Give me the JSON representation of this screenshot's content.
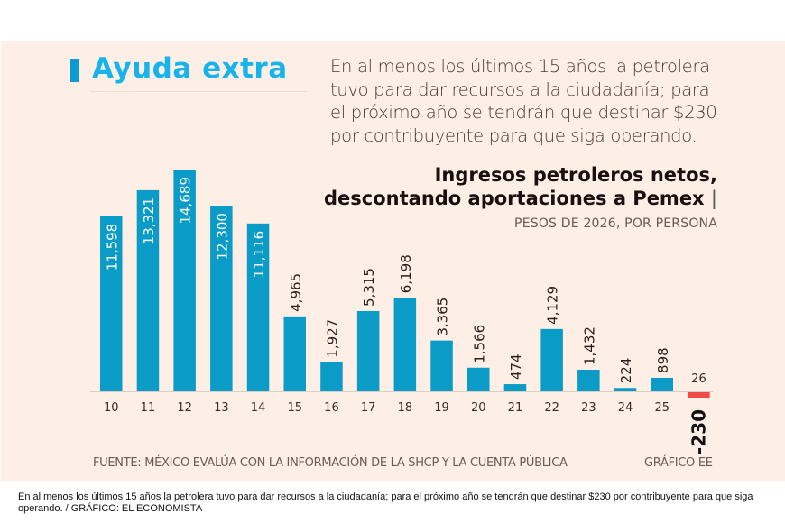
{
  "header": {
    "title": "Ayuda extra",
    "intro": "En al menos los últimos 15 años la petrolera tuvo para dar recursos a la ciudadanía; para el próximo año se tendrán que destinar $230 por contribuyente para que siga operando."
  },
  "chart_data": {
    "type": "bar",
    "title_line1": "Ingresos petroleros netos,",
    "title_line2": "descontando aportaciones a Pemex",
    "title_separator": "|",
    "subtitle": "PESOS DE 2026, POR PERSONA",
    "xlabel": "",
    "ylabel": "",
    "categories": [
      "10",
      "11",
      "12",
      "13",
      "14",
      "15",
      "16",
      "17",
      "18",
      "19",
      "20",
      "21",
      "22",
      "23",
      "24",
      "25",
      "26"
    ],
    "values": [
      11598,
      13321,
      14689,
      12300,
      11116,
      4965,
      1927,
      5315,
      6198,
      3365,
      1566,
      474,
      4129,
      1432,
      224,
      898,
      -230
    ],
    "labels": [
      "11,598",
      "13,321",
      "14,689",
      "12,300",
      "11,116",
      "4,965",
      "1,927",
      "5,315",
      "6,198",
      "3,365",
      "1,566",
      "474",
      "4,129",
      "1,432",
      "224",
      "898",
      "-230"
    ],
    "label_inside": [
      true,
      true,
      true,
      true,
      true,
      false,
      false,
      false,
      false,
      false,
      false,
      false,
      false,
      false,
      false,
      false,
      false
    ],
    "ylim": [
      -230,
      14689
    ],
    "grid": false,
    "legend": "none",
    "colors": {
      "positive": "#0a9bc6",
      "negative": "#f04a45",
      "inside_label": "#ffffff",
      "outside_label": "#2b1f1c",
      "negative_label": "#111111",
      "axis": "#d9cfc8",
      "tick": "#3a2b27"
    }
  },
  "footer": {
    "source": "FUENTE: MÉXICO EVALÚA CON LA INFORMACIÓN DE LA SHCP Y LA CUENTA PÚBLICA",
    "credit": "GRÁFICO EE"
  },
  "caption": "En al menos los últimos 15 años la petrolera tuvo para dar recursos a la ciudadanía; para el próximo año se tendrán que destinar $230 por contribuyente para que siga operando. / GRÁFICO: EL ECONOMISTA"
}
